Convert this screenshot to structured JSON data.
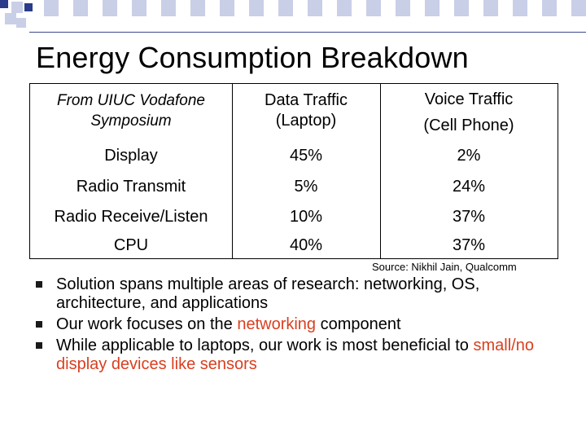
{
  "slide": {
    "title": "Energy Consumption Breakdown",
    "colors": {
      "accent": "#d93f1f",
      "band_dark": "#2a3c8a",
      "band_light": "#c9cfe6"
    }
  },
  "table": {
    "headers": [
      [
        "From UIUC Vodafone",
        "Symposium"
      ],
      [
        "Data Traffic",
        "(Laptop)"
      ],
      [
        "Voice Traffic",
        "(Cell Phone)"
      ]
    ],
    "rows": [
      [
        "Display",
        "45%",
        "2%"
      ],
      [
        "Radio Transmit",
        "5%",
        "24%"
      ],
      [
        "Radio Receive/Listen",
        "10%",
        "37%"
      ],
      [
        "CPU",
        "40%",
        "37%"
      ]
    ]
  },
  "source": "Source: Nikhil Jain, Qualcomm",
  "bullets": {
    "b1": "Solution spans multiple areas of research: networking, OS, architecture, and applications",
    "b2_pre": "Our work focuses on the ",
    "b2_hl": "networking",
    "b2_post": " component",
    "b3_pre": "While applicable to laptops, our work is most beneficial to ",
    "b3_hl": "small/no display devices like sensors"
  }
}
